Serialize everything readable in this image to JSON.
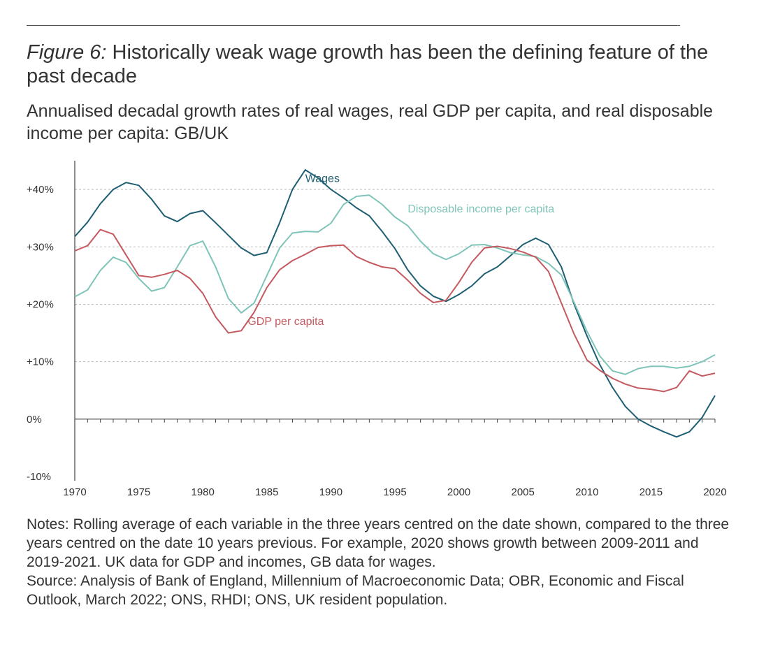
{
  "figure": {
    "label": "Figure 6:",
    "title": "Historically weak wage growth has been the defining feature of the past decade",
    "subtitle": "Annualised decadal growth rates of real wages, real GDP per capita, and real disposable income per capita: GB/UK"
  },
  "notes": {
    "text": "Notes: Rolling average of each variable in the three years centred on the date shown, compared to the three years centred on the date 10 years previous. For example, 2020 shows growth between 2009-2011 and 2019-2021. UK data for GDP and incomes, GB data for wages.",
    "source": "Source: Analysis of Bank of England, Millennium of Macroeconomic Data; OBR, Economic and Fiscal Outlook, March 2022; ONS, RHDI; ONS, UK resident population."
  },
  "chart_data": {
    "type": "line",
    "xlim": [
      1970,
      2020
    ],
    "ylim": [
      -10,
      45
    ],
    "x_ticks": [
      1970,
      1975,
      1980,
      1985,
      1990,
      1995,
      2000,
      2005,
      2010,
      2015,
      2020
    ],
    "y_ticks": [
      {
        "value": 40,
        "label": "+40%"
      },
      {
        "value": 30,
        "label": "+30%"
      },
      {
        "value": 20,
        "label": "+20%"
      },
      {
        "value": 10,
        "label": "+10%"
      },
      {
        "value": 0,
        "label": "0%"
      },
      {
        "value": -10,
        "label": "-10%"
      }
    ],
    "grid": "horizontal dashed",
    "x": [
      1970,
      1971,
      1972,
      1973,
      1974,
      1975,
      1976,
      1977,
      1978,
      1979,
      1980,
      1981,
      1982,
      1983,
      1984,
      1985,
      1986,
      1987,
      1988,
      1989,
      1990,
      1991,
      1992,
      1993,
      1994,
      1995,
      1996,
      1997,
      1998,
      1999,
      2000,
      2001,
      2002,
      2003,
      2004,
      2005,
      2006,
      2007,
      2008,
      2009,
      2010,
      2011,
      2012,
      2013,
      2014,
      2015,
      2016,
      2017,
      2018,
      2019,
      2020
    ],
    "series": [
      {
        "name": "Wages",
        "color": "#1f5f73",
        "label_x": 1988,
        "label_y": 41.3,
        "values": [
          31.8,
          34.3,
          37.5,
          40.0,
          41.2,
          40.7,
          38.3,
          35.4,
          34.4,
          35.8,
          36.3,
          34.2,
          32.0,
          29.8,
          28.5,
          29.0,
          34.2,
          40.0,
          43.4,
          42.0,
          40.0,
          38.5,
          36.8,
          35.4,
          32.7,
          29.7,
          26.0,
          23.2,
          21.4,
          20.5,
          21.7,
          23.2,
          25.3,
          26.5,
          28.4,
          30.4,
          31.5,
          30.4,
          26.5,
          20.0,
          14.5,
          9.5,
          5.5,
          2.2,
          0.0,
          -1.2,
          -2.2,
          -3.1,
          -2.2,
          0.3,
          4.1
        ]
      },
      {
        "name": "Disposable income per capita",
        "color": "#7fc4b8",
        "label_x": 1996,
        "label_y": 36.0,
        "values": [
          21.3,
          22.5,
          25.9,
          28.2,
          27.3,
          24.5,
          22.3,
          22.9,
          26.5,
          30.2,
          31.0,
          26.5,
          21.0,
          18.5,
          20.2,
          25.0,
          29.8,
          32.4,
          32.7,
          32.6,
          34.1,
          37.4,
          38.8,
          39.0,
          37.4,
          35.2,
          33.7,
          31.0,
          28.8,
          27.8,
          28.8,
          30.3,
          30.4,
          29.8,
          29.0,
          28.6,
          28.3,
          27.1,
          25.1,
          20.3,
          15.3,
          11.0,
          8.4,
          7.8,
          8.8,
          9.2,
          9.2,
          8.9,
          9.2,
          10.0,
          11.2
        ]
      },
      {
        "name": "GDP per capita",
        "color": "#c4595f",
        "label_x": 1983.5,
        "label_y": 16.4,
        "values": [
          29.3,
          30.2,
          33.0,
          32.2,
          28.6,
          25.0,
          24.7,
          25.2,
          25.9,
          24.5,
          21.9,
          17.8,
          15.0,
          15.4,
          18.6,
          22.9,
          26.0,
          27.6,
          28.7,
          29.9,
          30.2,
          30.3,
          28.3,
          27.3,
          26.5,
          26.2,
          24.2,
          21.9,
          20.3,
          20.7,
          23.8,
          27.3,
          29.8,
          30.1,
          29.7,
          29.1,
          28.2,
          25.7,
          20.2,
          14.8,
          10.3,
          8.5,
          7.1,
          6.1,
          5.4,
          5.2,
          4.8,
          5.5,
          8.4,
          7.5,
          8.0
        ]
      }
    ]
  }
}
